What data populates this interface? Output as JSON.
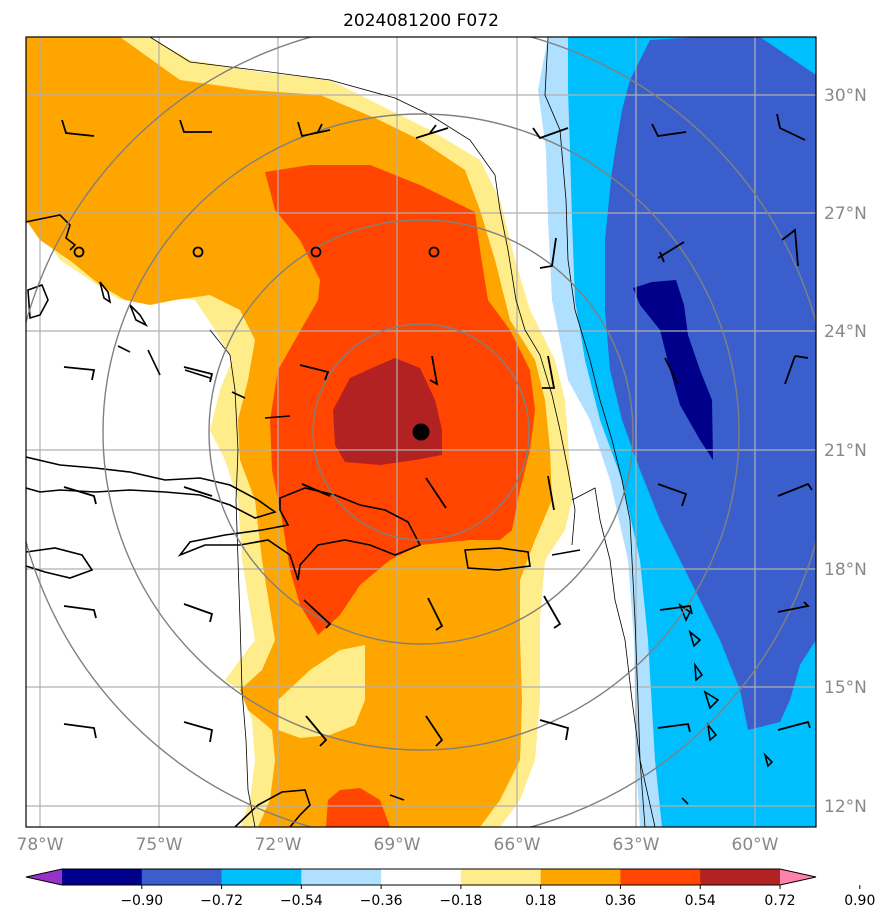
{
  "title": "2024081200 F072",
  "map": {
    "lon_labels": [
      "78°W",
      "75°W",
      "72°W",
      "69°W",
      "66°W",
      "63°W",
      "60°W"
    ],
    "lat_labels": [
      "30°N",
      "27°N",
      "24°N",
      "21°N",
      "18°N",
      "15°N",
      "12°N"
    ],
    "center_marker": "storm-center-dot",
    "gridlines": true,
    "range_rings": true
  },
  "colorbar": {
    "tick_labels": [
      "−0.90",
      "−0.72",
      "−0.54",
      "−0.36",
      "−0.18",
      "0.18",
      "0.36",
      "0.54",
      "0.72",
      "0.90"
    ],
    "colors": [
      "#9932cc",
      "#00008b",
      "#3a5fcd",
      "#00bfff",
      "#b0e0ff",
      "#ffffff",
      "#ffec8b",
      "#ffa500",
      "#ff4500",
      "#b22222",
      "#ff82ab"
    ]
  },
  "colors": {
    "white": "#ffffff",
    "yellow": "#ffec8b",
    "orange": "#ffa500",
    "red": "#ff4500",
    "darkred": "#b22222",
    "lightblue": "#b0e0ff",
    "cyan": "#00bfff",
    "blue": "#3a5fcd",
    "navy": "#00008b",
    "grid": "#b0b0b0",
    "rings": "#808080"
  }
}
